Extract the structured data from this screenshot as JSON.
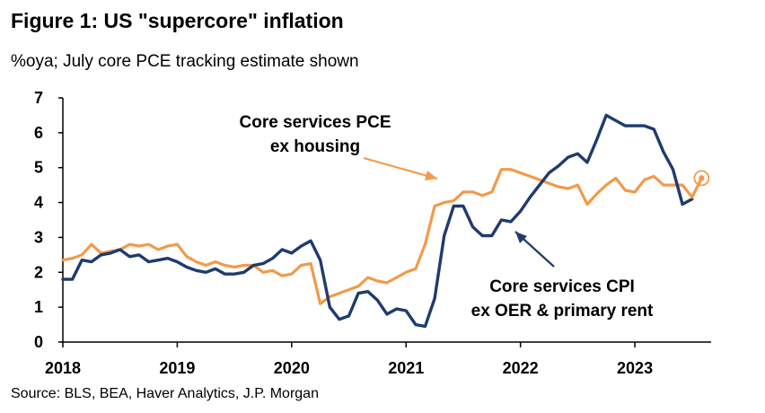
{
  "title": "Figure 1: US \"supercore\" inflation",
  "subtitle": "%oya; July core PCE tracking estimate shown",
  "source": "Source: BLS, BEA, Haver Analytics, J.P. Morgan",
  "colors": {
    "cpi": "#1f3b6e",
    "pce": "#f29a4a",
    "axis": "#000000"
  },
  "chart_data": {
    "type": "line",
    "title": "Figure 1: US \"supercore\" inflation",
    "subtitle": "%oya; July core PCE tracking estimate shown",
    "xlabel": "",
    "ylabel": "",
    "ylim": [
      0,
      7
    ],
    "xlim": [
      "2018-01",
      "2023-09"
    ],
    "yticks": [
      "0",
      "1",
      "2",
      "3",
      "4",
      "5",
      "6",
      "7"
    ],
    "xticks": [
      {
        "label": "2018",
        "at": "2018-01"
      },
      {
        "label": "2019",
        "at": "2019-01"
      },
      {
        "label": "2020",
        "at": "2020-01"
      },
      {
        "label": "2021",
        "at": "2021-01"
      },
      {
        "label": "2022",
        "at": "2022-01"
      },
      {
        "label": "2023",
        "at": "2023-01"
      }
    ],
    "grid": false,
    "legend": "none",
    "annotations": [
      {
        "series": "Core services PCE ex housing",
        "lines": [
          "Core services PCE",
          "ex housing"
        ]
      },
      {
        "series": "Core services CPI ex OER & primary rent",
        "lines": [
          "Core services CPI",
          "ex OER & primary rent"
        ]
      }
    ],
    "series": [
      {
        "name": "Core services PCE ex housing",
        "color": "#f29a4a",
        "x": [
          "2018-01",
          "2018-02",
          "2018-03",
          "2018-04",
          "2018-05",
          "2018-06",
          "2018-07",
          "2018-08",
          "2018-09",
          "2018-10",
          "2018-11",
          "2018-12",
          "2019-01",
          "2019-02",
          "2019-03",
          "2019-04",
          "2019-05",
          "2019-06",
          "2019-07",
          "2019-08",
          "2019-09",
          "2019-10",
          "2019-11",
          "2019-12",
          "2020-01",
          "2020-02",
          "2020-03",
          "2020-04",
          "2020-05",
          "2020-06",
          "2020-07",
          "2020-08",
          "2020-09",
          "2020-10",
          "2020-11",
          "2020-12",
          "2021-01",
          "2021-02",
          "2021-03",
          "2021-04",
          "2021-05",
          "2021-06",
          "2021-07",
          "2021-08",
          "2021-09",
          "2021-10",
          "2021-11",
          "2021-12",
          "2022-01",
          "2022-02",
          "2022-03",
          "2022-04",
          "2022-05",
          "2022-06",
          "2022-07",
          "2022-08",
          "2022-09",
          "2022-10",
          "2022-11",
          "2022-12",
          "2023-01",
          "2023-02",
          "2023-03",
          "2023-04",
          "2023-05",
          "2023-06",
          "2023-07"
        ],
        "values": [
          2.35,
          2.4,
          2.5,
          2.8,
          2.55,
          2.6,
          2.65,
          2.8,
          2.75,
          2.8,
          2.65,
          2.75,
          2.8,
          2.45,
          2.3,
          2.2,
          2.3,
          2.2,
          2.15,
          2.2,
          2.2,
          2.0,
          2.05,
          1.9,
          1.95,
          2.2,
          2.25,
          1.1,
          1.3,
          1.4,
          1.5,
          1.6,
          1.85,
          1.75,
          1.7,
          1.85,
          2.0,
          2.1,
          2.8,
          3.9,
          4.0,
          4.05,
          4.3,
          4.3,
          4.2,
          4.3,
          4.95,
          4.95,
          4.85,
          4.75,
          4.65,
          4.55,
          4.45,
          4.4,
          4.5,
          3.95,
          4.25,
          4.5,
          4.7,
          4.35,
          4.3,
          4.65,
          4.75,
          4.5,
          4.5,
          4.5,
          4.15
        ]
      },
      {
        "name": "Core services CPI ex OER & primary rent",
        "color": "#1f3b6e",
        "x": [
          "2018-01",
          "2018-02",
          "2018-03",
          "2018-04",
          "2018-05",
          "2018-06",
          "2018-07",
          "2018-08",
          "2018-09",
          "2018-10",
          "2018-11",
          "2018-12",
          "2019-01",
          "2019-02",
          "2019-03",
          "2019-04",
          "2019-05",
          "2019-06",
          "2019-07",
          "2019-08",
          "2019-09",
          "2019-10",
          "2019-11",
          "2019-12",
          "2020-01",
          "2020-02",
          "2020-03",
          "2020-04",
          "2020-05",
          "2020-06",
          "2020-07",
          "2020-08",
          "2020-09",
          "2020-10",
          "2020-11",
          "2020-12",
          "2021-01",
          "2021-02",
          "2021-03",
          "2021-04",
          "2021-05",
          "2021-06",
          "2021-07",
          "2021-08",
          "2021-09",
          "2021-10",
          "2021-11",
          "2021-12",
          "2022-01",
          "2022-02",
          "2022-03",
          "2022-04",
          "2022-05",
          "2022-06",
          "2022-07",
          "2022-08",
          "2022-09",
          "2022-10",
          "2022-11",
          "2022-12",
          "2023-01",
          "2023-02",
          "2023-03",
          "2023-04",
          "2023-05",
          "2023-06",
          "2023-07"
        ],
        "values": [
          1.8,
          1.8,
          2.35,
          2.3,
          2.5,
          2.55,
          2.65,
          2.45,
          2.5,
          2.3,
          2.35,
          2.4,
          2.3,
          2.15,
          2.05,
          2.0,
          2.1,
          1.95,
          1.95,
          2.0,
          2.2,
          2.25,
          2.4,
          2.65,
          2.55,
          2.75,
          2.9,
          2.35,
          1.0,
          0.65,
          0.75,
          1.4,
          1.45,
          1.2,
          0.8,
          0.95,
          0.9,
          0.5,
          0.45,
          1.25,
          3.05,
          3.9,
          3.9,
          3.3,
          3.05,
          3.05,
          3.5,
          3.45,
          3.75,
          4.15,
          4.5,
          4.85,
          5.05,
          5.3,
          5.4,
          5.15,
          5.8,
          6.5,
          6.35,
          6.2,
          6.2,
          6.2,
          6.1,
          5.45,
          4.95,
          3.95,
          4.1
        ]
      }
    ],
    "highlight": {
      "series": "Core services PCE ex housing",
      "x": "2023-08",
      "value": 4.7
    }
  }
}
